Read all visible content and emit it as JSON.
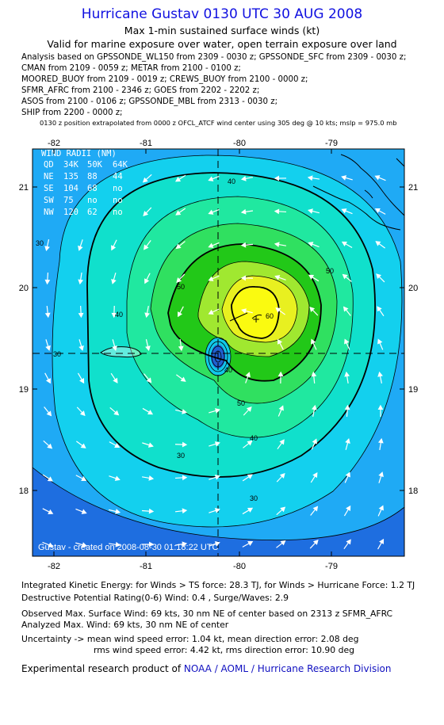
{
  "header": {
    "title": "Hurricane Gustav 0130 UTC 30 AUG 2008",
    "subtitle": "Max 1-min sustained surface winds (kt)",
    "validity": "Valid for marine exposure over water, open terrain exposure over land"
  },
  "analysis_lines": [
    "Analysis based on  GPSSONDE_WL150 from 2309 - 0030 z;  GPSSONDE_SFC from 2309 - 0030 z;",
    "CMAN from 2109 - 0059 z;  METAR from 2100 - 0100 z;",
    "MOORED_BUOY from 2109 - 0019 z;  CREWS_BUOY from 2100 - 0000 z;",
    "SFMR_AFRC from 2100 - 2346 z;  GOES from 2202 - 2202 z;",
    "ASOS from 2100 - 0106 z;  GPSSONDE_MBL from 2313 - 0030 z;",
    "SHIP from 2200 - 0000 z;"
  ],
  "position_note": "0130 z position extrapolated from 0000 z OFCL_ATCF wind center using 305 deg @ 10 kts; mslp = 975.0 mb",
  "map": {
    "lon_ticks": [
      "-82",
      "-81",
      "-80",
      "-79"
    ],
    "lat_ticks": [
      "21",
      "20",
      "19",
      "18"
    ],
    "wind_radii": {
      "title": "WIND RADII (NM)",
      "header": [
        "QD",
        "34K",
        "50K",
        "64K"
      ],
      "rows": [
        [
          "NE",
          "135",
          "88",
          "44"
        ],
        [
          "SE",
          "104",
          "68",
          "no"
        ],
        [
          "SW",
          "75",
          "no",
          "no"
        ],
        [
          "NW",
          "120",
          "62",
          "no"
        ]
      ]
    },
    "contour_labels": [
      "30",
      "30",
      "30",
      "30",
      "40",
      "40",
      "40",
      "40",
      "50",
      "50",
      "50",
      "60"
    ],
    "credit": "Gustav - created on 2008-08-30 01:18:22 UTC"
  },
  "footer": {
    "ike": "Integrated Kinetic Energy:  for Winds > TS force: 28.3 TJ,  for Winds > Hurricane Force: 1.2 TJ",
    "dpr": "Destructive Potential Rating(0-6)   Wind: 0.4 , Surge/Waves: 2.9",
    "observed": "Observed Max. Surface Wind: 69 kts, 30 nm NE of center based on 2313 z SFMR_AFRC",
    "analyzed": "Analyzed Max. Wind: 69 kts, 30 nm NE of center",
    "uncertainty1": "Uncertainty -> mean wind speed error: 1.04 kt,   mean direction error: 2.08 deg",
    "uncertainty2": "rms wind speed error: 4.42 kt,   rms direction error: 10.90 deg",
    "product_prefix": "Experimental research product of ",
    "product_link": "NOAA / AOML / Hurricane Research Division"
  }
}
